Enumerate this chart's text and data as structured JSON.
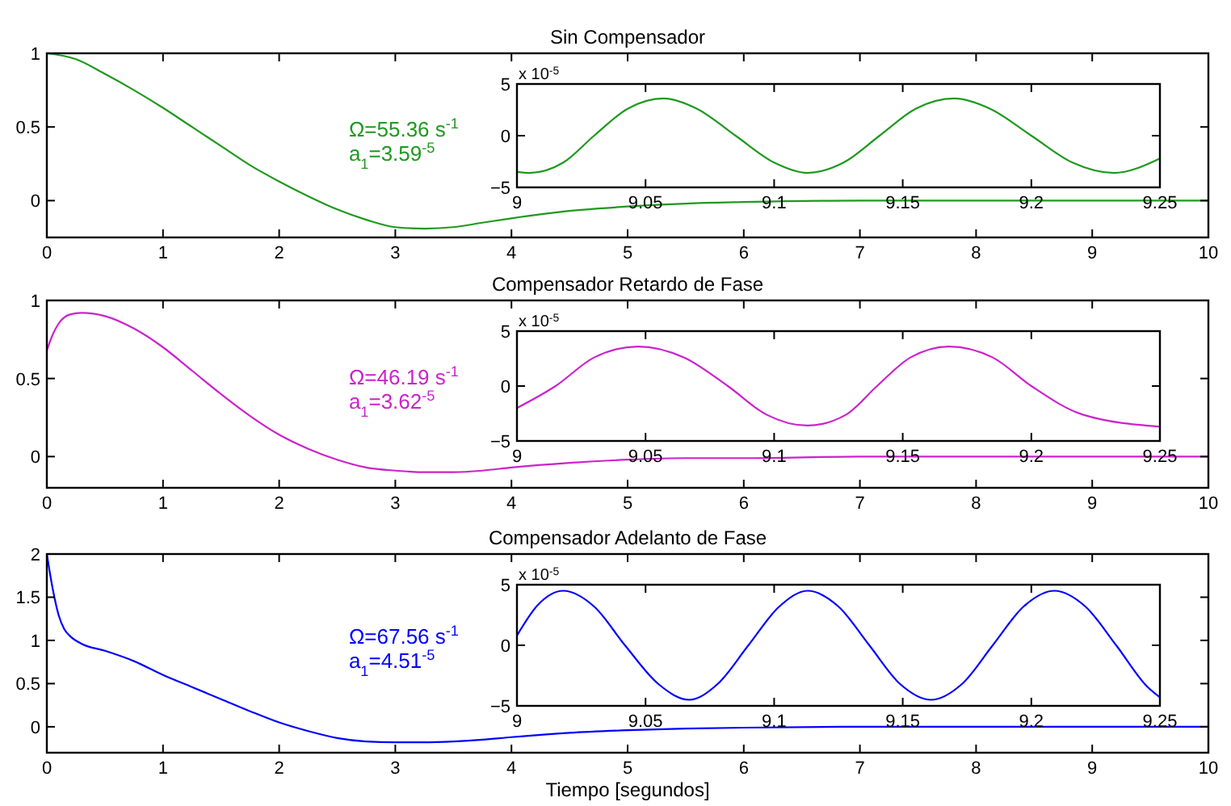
{
  "chart_data": [
    {
      "type": "line",
      "title": "Sin Compensador",
      "xlim": [
        0,
        10
      ],
      "xticks": [
        0,
        1,
        2,
        3,
        4,
        5,
        6,
        7,
        8,
        9,
        10
      ],
      "ylim": [
        -0.25,
        1
      ],
      "yticks": [
        0,
        0.5,
        1
      ],
      "grid": false,
      "x": [
        0,
        0.25,
        0.5,
        0.75,
        1,
        1.25,
        1.5,
        1.75,
        2,
        2.25,
        2.5,
        2.75,
        3,
        3.25,
        3.5,
        3.75,
        4,
        4.5,
        5,
        5.5,
        6,
        7,
        8,
        9,
        10
      ],
      "series": [
        {
          "color": "#1f991f",
          "values": [
            1,
            0.96,
            0.86,
            0.75,
            0.63,
            0.5,
            0.37,
            0.24,
            0.13,
            0.03,
            -0.06,
            -0.13,
            -0.18,
            -0.19,
            -0.18,
            -0.15,
            -0.12,
            -0.07,
            -0.04,
            -0.02,
            -0.01,
            0,
            0,
            0,
            0
          ]
        }
      ],
      "annotations": [
        "Ω=55.36 s$^{-1}$",
        "a$_{1}$=3.59$^{-5}$"
      ]
    },
    {
      "type": "line",
      "xlim": [
        9,
        9.25
      ],
      "xticks": [
        9,
        9.05,
        9.1,
        9.15,
        9.2,
        9.25
      ],
      "ylim": [
        -5,
        5
      ],
      "yticks": [
        -5,
        0,
        5
      ],
      "grid": false,
      "x": [
        9,
        9.005,
        9.018,
        9.03,
        9.043,
        9.057,
        9.07,
        9.085,
        9.1,
        9.113,
        9.127,
        9.141,
        9.155,
        9.17,
        9.184,
        9.2,
        9.216,
        9.232,
        9.25
      ],
      "series": [
        {
          "color": "#1f991f",
          "values": [
            -3.5,
            -3.6,
            -2.6,
            0,
            2.6,
            3.6,
            2.6,
            0,
            -2.6,
            -3.6,
            -2.6,
            0,
            2.6,
            3.6,
            2.6,
            0,
            -2.6,
            -3.6,
            -2.2
          ]
        }
      ],
      "annotations": [
        "x 10$^{-5}$"
      ]
    },
    {
      "type": "line",
      "title": "Compensador Retardo de Fase",
      "xlim": [
        0,
        10
      ],
      "xticks": [
        0,
        1,
        2,
        3,
        4,
        5,
        6,
        7,
        8,
        9,
        10
      ],
      "ylim": [
        -0.2,
        1
      ],
      "yticks": [
        0,
        0.5,
        1
      ],
      "grid": false,
      "x": [
        0,
        0.05,
        0.1,
        0.2,
        0.3,
        0.5,
        0.75,
        1,
        1.25,
        1.5,
        1.75,
        2,
        2.25,
        2.5,
        2.75,
        3,
        3.25,
        3.5,
        3.75,
        4,
        4.5,
        5,
        5.5,
        6,
        7,
        8,
        9,
        10
      ],
      "series": [
        {
          "color": "#cc22cc",
          "values": [
            0.68,
            0.78,
            0.85,
            0.91,
            0.92,
            0.9,
            0.82,
            0.7,
            0.55,
            0.4,
            0.26,
            0.14,
            0.05,
            -0.02,
            -0.07,
            -0.09,
            -0.1,
            -0.1,
            -0.09,
            -0.07,
            -0.04,
            -0.02,
            -0.01,
            -0.01,
            0,
            0,
            0,
            0
          ]
        }
      ],
      "annotations": [
        "Ω=46.19 s$^{-1}$",
        "a$_{1}$=3.62$^{-5}$"
      ]
    },
    {
      "type": "line",
      "xlim": [
        9,
        9.25
      ],
      "xticks": [
        9,
        9.05,
        9.1,
        9.15,
        9.2,
        9.25
      ],
      "ylim": [
        -5,
        5
      ],
      "yticks": [
        -5,
        0,
        5
      ],
      "grid": false,
      "x": [
        9,
        9.015,
        9.03,
        9.047,
        9.065,
        9.082,
        9.097,
        9.113,
        9.128,
        9.14,
        9.153,
        9.168,
        9.185,
        9.2,
        9.22,
        9.25
      ],
      "series": [
        {
          "color": "#cc22cc",
          "values": [
            -2,
            0,
            2.6,
            3.6,
            2.6,
            0,
            -2.6,
            -3.6,
            -2.6,
            0,
            2.6,
            3.6,
            2.6,
            0,
            -2.6,
            -3.7
          ]
        }
      ],
      "annotations": [
        "x 10$^{-5}$"
      ]
    },
    {
      "type": "line",
      "title": "Compensador Adelanto de Fase",
      "xlabel": "Tiempo [segundos]",
      "xlim": [
        0,
        10
      ],
      "xticks": [
        0,
        1,
        2,
        3,
        4,
        5,
        6,
        7,
        8,
        9,
        10
      ],
      "ylim": [
        -0.3,
        2
      ],
      "yticks": [
        0,
        0.5,
        1,
        1.5,
        2
      ],
      "grid": false,
      "x": [
        0,
        0.05,
        0.1,
        0.15,
        0.2,
        0.3,
        0.5,
        0.75,
        1,
        1.25,
        1.5,
        1.75,
        2,
        2.25,
        2.5,
        2.75,
        3,
        3.25,
        3.5,
        3.75,
        4,
        4.5,
        5,
        5.5,
        6,
        7,
        8,
        9,
        10
      ],
      "series": [
        {
          "color": "#0000ff",
          "values": [
            2,
            1.6,
            1.3,
            1.13,
            1.05,
            0.96,
            0.88,
            0.76,
            0.6,
            0.46,
            0.32,
            0.18,
            0.05,
            -0.05,
            -0.13,
            -0.17,
            -0.18,
            -0.18,
            -0.17,
            -0.15,
            -0.12,
            -0.07,
            -0.04,
            -0.02,
            -0.01,
            0,
            0,
            0,
            0
          ]
        }
      ],
      "annotations": [
        "Ω=67.56 s$^{-1}$",
        "a$_{1}$=4.51$^{-5}$"
      ]
    },
    {
      "type": "line",
      "xlim": [
        9,
        9.25
      ],
      "xticks": [
        9,
        9.05,
        9.1,
        9.15,
        9.2,
        9.25
      ],
      "ylim": [
        -5,
        5
      ],
      "yticks": [
        -5,
        0,
        5
      ],
      "grid": false,
      "x": [
        9,
        9.008,
        9.018,
        9.03,
        9.042,
        9.055,
        9.067,
        9.078,
        9.09,
        9.102,
        9.113,
        9.125,
        9.137,
        9.149,
        9.161,
        9.173,
        9.185,
        9.197,
        9.209,
        9.221,
        9.233,
        9.245,
        9.25
      ],
      "series": [
        {
          "color": "#0000ff",
          "values": [
            0.8,
            3.3,
            4.5,
            3.2,
            0,
            -3.2,
            -4.5,
            -3.2,
            0,
            3.2,
            4.5,
            3.2,
            0,
            -3.2,
            -4.5,
            -3.2,
            0,
            3.2,
            4.5,
            3.2,
            0,
            -3.4,
            -4.3
          ]
        }
      ],
      "annotations": [
        "x 10$^{-5}$"
      ]
    }
  ]
}
